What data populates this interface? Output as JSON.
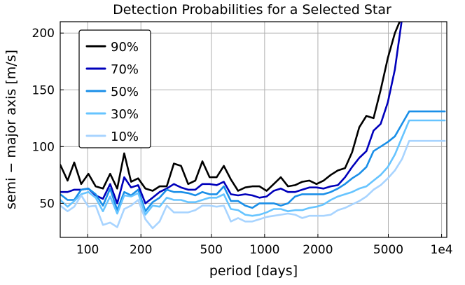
{
  "chart_data": {
    "type": "line",
    "title": "Detection Probabilities for a Selected Star",
    "xlabel": "period [days]",
    "ylabel": "semi − major axis [m/s]",
    "xscale": "log",
    "xlim": [
      70,
      10700
    ],
    "ylim": [
      20,
      210
    ],
    "grid": true,
    "legend_position": "top-left",
    "x_ticks": [
      {
        "value": 100,
        "label": "100"
      },
      {
        "value": 200,
        "label": "200"
      },
      {
        "value": 500,
        "label": "500"
      },
      {
        "value": 1000,
        "label": "1000"
      },
      {
        "value": 2000,
        "label": "2000"
      },
      {
        "value": 5000,
        "label": "5000"
      },
      {
        "value": 10000,
        "label": "1e4"
      }
    ],
    "y_ticks": [
      {
        "value": 50,
        "label": "50"
      },
      {
        "value": 100,
        "label": "100"
      },
      {
        "value": 150,
        "label": "150"
      },
      {
        "value": 200,
        "label": "200"
      }
    ],
    "x": [
      70,
      77,
      84,
      92,
      101,
      111,
      122,
      134,
      147,
      161,
      176,
      193,
      212,
      233,
      255,
      280,
      307,
      337,
      370,
      406,
      445,
      489,
      536,
      588,
      645,
      708,
      777,
      852,
      935,
      1026,
      1126,
      1235,
      1355,
      1487,
      1631,
      1790,
      1964,
      2155,
      2364,
      2594,
      2846,
      3123,
      3426,
      3759,
      4125,
      4526,
      4966,
      5448,
      5978,
      6559,
      7196,
      7896,
      8663,
      9505,
      10429
    ],
    "series": [
      {
        "name": "90%",
        "color": "#000000",
        "values": [
          84,
          70,
          86,
          67,
          76,
          65,
          63,
          76,
          63,
          94,
          69,
          72,
          63,
          61,
          65,
          65,
          85,
          83,
          67,
          70,
          87,
          73,
          73,
          83,
          71,
          61,
          64,
          65,
          65,
          61,
          67,
          73,
          65,
          66,
          69,
          70,
          67,
          70,
          75,
          79,
          81,
          95,
          117,
          127,
          125,
          150,
          178,
          200,
          215,
          215,
          215,
          215,
          215,
          215,
          215
        ]
      },
      {
        "name": "70%",
        "color": "#0000bb",
        "values": [
          60,
          60,
          62,
          62,
          63,
          57,
          54,
          67,
          50,
          73,
          64,
          66,
          50,
          55,
          60,
          63,
          67,
          64,
          62,
          62,
          67,
          67,
          66,
          69,
          58,
          57,
          58,
          57,
          55,
          56,
          61,
          63,
          60,
          60,
          62,
          64,
          64,
          63,
          65,
          66,
          73,
          82,
          90,
          96,
          114,
          120,
          139,
          168,
          213,
          215,
          215,
          215,
          215,
          215,
          215
        ]
      },
      {
        "name": "50%",
        "color": "#1a8fe8",
        "values": [
          58,
          53,
          53,
          62,
          63,
          58,
          48,
          63,
          44,
          60,
          57,
          62,
          43,
          51,
          55,
          62,
          60,
          60,
          59,
          57,
          60,
          58,
          58,
          65,
          52,
          52,
          48,
          46,
          50,
          50,
          50,
          48,
          50,
          56,
          58,
          58,
          58,
          58,
          60,
          63,
          67,
          72,
          76,
          82,
          96,
          100,
          104,
          109,
          120,
          131,
          131,
          131,
          131,
          131,
          131
        ]
      },
      {
        "name": "30%",
        "color": "#66c4ff",
        "values": [
          53,
          47,
          52,
          58,
          60,
          55,
          43,
          56,
          41,
          57,
          56,
          59,
          40,
          48,
          47,
          55,
          53,
          53,
          51,
          51,
          53,
          55,
          55,
          58,
          45,
          44,
          40,
          39,
          40,
          42,
          45,
          45,
          43,
          44,
          44,
          46,
          47,
          49,
          53,
          56,
          58,
          60,
          63,
          65,
          70,
          75,
          82,
          93,
          108,
          123,
          123,
          123,
          123,
          123,
          123
        ]
      },
      {
        "name": "10%",
        "color": "#a8d4ff",
        "values": [
          48,
          43,
          47,
          57,
          47,
          48,
          31,
          33,
          29,
          45,
          48,
          53,
          36,
          28,
          34,
          48,
          42,
          42,
          42,
          44,
          48,
          48,
          47,
          48,
          34,
          37,
          34,
          34,
          36,
          38,
          39,
          40,
          41,
          40,
          37,
          39,
          39,
          39,
          40,
          44,
          46,
          49,
          52,
          56,
          62,
          66,
          72,
          79,
          89,
          105,
          105,
          105,
          105,
          105,
          105
        ]
      }
    ]
  }
}
